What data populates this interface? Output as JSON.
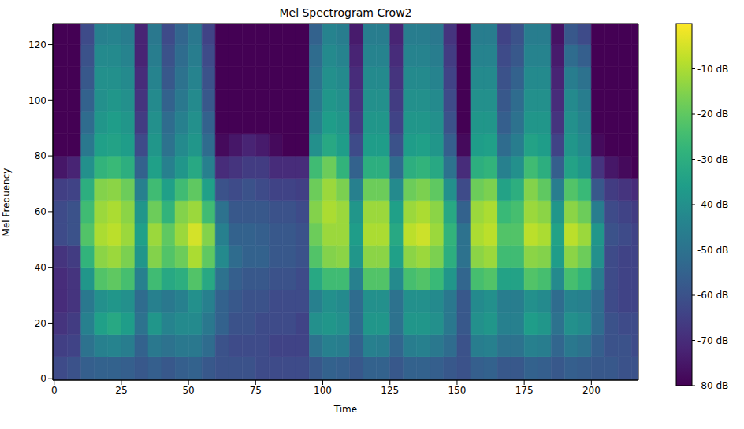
{
  "chart_data": {
    "type": "heatmap",
    "title": "Mel Spectrogram Crow2",
    "x_label": "Time",
    "y_label": "Mel Frequency",
    "xlim": [
      -0.5,
      217.5
    ],
    "ylim": [
      -0.5,
      127.5
    ],
    "xticks": [
      0,
      25,
      50,
      75,
      100,
      125,
      150,
      175,
      200
    ],
    "yticks": [
      0,
      20,
      40,
      60,
      80,
      100,
      120
    ],
    "x_bins": [
      -0.5,
      5,
      10,
      15,
      20,
      25,
      30,
      35,
      40,
      45,
      50,
      55,
      60,
      65,
      70,
      75,
      80,
      85,
      90,
      95,
      100,
      105,
      110,
      115,
      120,
      125,
      130,
      135,
      140,
      145,
      150,
      155,
      160,
      165,
      170,
      175,
      180,
      185,
      190,
      195,
      200,
      205,
      210,
      215,
      217.5
    ],
    "y_bins": [
      -0.5,
      8,
      16,
      24,
      32,
      40,
      48,
      56,
      64,
      72,
      80,
      88,
      96,
      104,
      112,
      120,
      127.5
    ],
    "cells": [
      [
        -62,
        -65,
        -68,
        -70,
        -70,
        -68,
        -62,
        -62,
        -65,
        -75,
        -80,
        -80,
        -80,
        -80,
        -80,
        -80
      ],
      [
        -60,
        -64,
        -66,
        -68,
        -68,
        -66,
        -60,
        -60,
        -64,
        -72,
        -80,
        -80,
        -80,
        -80,
        -80,
        -80
      ],
      [
        -56,
        -50,
        -45,
        -48,
        -38,
        -28,
        -22,
        -25,
        -30,
        -40,
        -48,
        -52,
        -55,
        -58,
        -60,
        -62
      ],
      [
        -55,
        -45,
        -35,
        -40,
        -22,
        -14,
        -10,
        -12,
        -15,
        -28,
        -35,
        -38,
        -40,
        -40,
        -42,
        -45
      ],
      [
        -55,
        -44,
        -32,
        -38,
        -20,
        -12,
        -8,
        -10,
        -14,
        -26,
        -34,
        -36,
        -38,
        -40,
        -42,
        -44
      ],
      [
        -56,
        -46,
        -36,
        -40,
        -24,
        -16,
        -12,
        -14,
        -18,
        -30,
        -36,
        -38,
        -40,
        -42,
        -44,
        -46
      ],
      [
        -58,
        -55,
        -50,
        -52,
        -45,
        -38,
        -35,
        -38,
        -45,
        -55,
        -62,
        -66,
        -68,
        -70,
        -72,
        -72
      ],
      [
        -56,
        -48,
        -38,
        -45,
        -25,
        -15,
        -12,
        -18,
        -25,
        -35,
        -38,
        -40,
        -42,
        -44,
        -46,
        -48
      ],
      [
        -58,
        -50,
        -44,
        -48,
        -32,
        -22,
        -20,
        -28,
        -35,
        -45,
        -50,
        -52,
        -55,
        -58,
        -60,
        -62
      ],
      [
        -56,
        -48,
        -42,
        -45,
        -30,
        -18,
        -12,
        -15,
        -25,
        -38,
        -42,
        -45,
        -48,
        -50,
        -52,
        -54
      ],
      [
        -55,
        -48,
        -42,
        -40,
        -22,
        -10,
        -5,
        -12,
        -20,
        -32,
        -38,
        -40,
        -42,
        -44,
        -46,
        -48
      ],
      [
        -58,
        -52,
        -48,
        -45,
        -32,
        -20,
        -15,
        -25,
        -35,
        -45,
        -52,
        -55,
        -58,
        -60,
        -62,
        -64
      ],
      [
        -60,
        -60,
        -55,
        -55,
        -50,
        -42,
        -45,
        -50,
        -60,
        -70,
        -78,
        -80,
        -80,
        -80,
        -80,
        -80
      ],
      [
        -60,
        -62,
        -60,
        -58,
        -56,
        -52,
        -55,
        -58,
        -62,
        -68,
        -75,
        -80,
        -80,
        -80,
        -80,
        -80
      ],
      [
        -60,
        -62,
        -60,
        -60,
        -58,
        -55,
        -55,
        -58,
        -60,
        -66,
        -72,
        -80,
        -80,
        -80,
        -80,
        -80
      ],
      [
        -62,
        -62,
        -62,
        -60,
        -58,
        -55,
        -56,
        -58,
        -62,
        -66,
        -74,
        -80,
        -80,
        -80,
        -80,
        -80
      ],
      [
        -62,
        -64,
        -62,
        -62,
        -60,
        -58,
        -58,
        -60,
        -64,
        -70,
        -78,
        -80,
        -80,
        -80,
        -80,
        -80
      ],
      [
        -62,
        -64,
        -62,
        -62,
        -60,
        -58,
        -58,
        -60,
        -64,
        -70,
        -80,
        -80,
        -80,
        -80,
        -80,
        -80
      ],
      [
        -62,
        -64,
        -64,
        -62,
        -62,
        -60,
        -60,
        -62,
        -65,
        -70,
        -80,
        -80,
        -80,
        -80,
        -80,
        -80
      ],
      [
        -58,
        -50,
        -40,
        -45,
        -32,
        -22,
        -18,
        -15,
        -18,
        -25,
        -40,
        -45,
        -48,
        -50,
        -52,
        -55
      ],
      [
        -55,
        -45,
        -38,
        -40,
        -25,
        -15,
        -12,
        -10,
        -12,
        -18,
        -32,
        -36,
        -38,
        -40,
        -42,
        -44
      ],
      [
        -56,
        -46,
        -40,
        -42,
        -25,
        -14,
        -12,
        -12,
        -16,
        -28,
        -36,
        -38,
        -40,
        -42,
        -44,
        -46
      ],
      [
        -58,
        -55,
        -52,
        -52,
        -45,
        -38,
        -36,
        -38,
        -45,
        -55,
        -62,
        -66,
        -68,
        -70,
        -72,
        -74
      ],
      [
        -55,
        -45,
        -38,
        -40,
        -22,
        -14,
        -10,
        -12,
        -18,
        -30,
        -36,
        -38,
        -40,
        -42,
        -44,
        -46
      ],
      [
        -55,
        -46,
        -38,
        -40,
        -22,
        -14,
        -10,
        -12,
        -18,
        -30,
        -36,
        -38,
        -40,
        -42,
        -44,
        -46
      ],
      [
        -58,
        -54,
        -50,
        -50,
        -42,
        -35,
        -32,
        -35,
        -42,
        -52,
        -60,
        -64,
        -66,
        -68,
        -70,
        -72
      ],
      [
        -55,
        -46,
        -38,
        -40,
        -24,
        -14,
        -8,
        -12,
        -18,
        -30,
        -36,
        -38,
        -40,
        -42,
        -44,
        -46
      ],
      [
        -55,
        -45,
        -38,
        -40,
        -22,
        -12,
        -6,
        -10,
        -16,
        -28,
        -35,
        -38,
        -40,
        -42,
        -44,
        -46
      ],
      [
        -56,
        -48,
        -40,
        -42,
        -26,
        -16,
        -12,
        -14,
        -20,
        -32,
        -38,
        -40,
        -42,
        -44,
        -46,
        -48
      ],
      [
        -58,
        -52,
        -48,
        -48,
        -38,
        -30,
        -28,
        -32,
        -40,
        -50,
        -56,
        -60,
        -62,
        -64,
        -66,
        -68
      ],
      [
        -60,
        -60,
        -58,
        -58,
        -54,
        -50,
        -50,
        -55,
        -62,
        -70,
        -78,
        -80,
        -80,
        -80,
        -80,
        -80
      ],
      [
        -56,
        -46,
        -40,
        -42,
        -24,
        -14,
        -10,
        -12,
        -18,
        -30,
        -36,
        -38,
        -40,
        -42,
        -44,
        -46
      ],
      [
        -55,
        -45,
        -38,
        -40,
        -22,
        -12,
        -8,
        -10,
        -16,
        -28,
        -35,
        -38,
        -40,
        -42,
        -44,
        -46
      ],
      [
        -58,
        -50,
        -45,
        -46,
        -34,
        -25,
        -22,
        -26,
        -34,
        -45,
        -52,
        -56,
        -58,
        -60,
        -62,
        -64
      ],
      [
        -58,
        -50,
        -45,
        -46,
        -34,
        -25,
        -22,
        -24,
        -30,
        -40,
        -46,
        -50,
        -52,
        -55,
        -58,
        -60
      ],
      [
        -55,
        -45,
        -36,
        -40,
        -22,
        -14,
        -8,
        -12,
        -15,
        -25,
        -34,
        -38,
        -40,
        -42,
        -44,
        -46
      ],
      [
        -56,
        -46,
        -38,
        -42,
        -24,
        -15,
        -10,
        -14,
        -20,
        -30,
        -36,
        -38,
        -40,
        -42,
        -44,
        -46
      ],
      [
        -58,
        -54,
        -50,
        -52,
        -42,
        -36,
        -34,
        -38,
        -46,
        -56,
        -64,
        -68,
        -70,
        -72,
        -74,
        -76
      ],
      [
        -56,
        -48,
        -40,
        -44,
        -24,
        -14,
        -8,
        -14,
        -22,
        -34,
        -38,
        -40,
        -42,
        -46,
        -52,
        -58
      ],
      [
        -57,
        -50,
        -42,
        -45,
        -28,
        -18,
        -12,
        -18,
        -26,
        -38,
        -42,
        -44,
        -46,
        -50,
        -56,
        -62
      ],
      [
        -58,
        -56,
        -52,
        -52,
        -46,
        -40,
        -38,
        -46,
        -58,
        -68,
        -78,
        -80,
        -80,
        -80,
        -80,
        -80
      ],
      [
        -58,
        -60,
        -60,
        -62,
        -62,
        -62,
        -60,
        -62,
        -66,
        -75,
        -80,
        -80,
        -80,
        -80,
        -80,
        -80
      ],
      [
        -60,
        -60,
        -62,
        -64,
        -64,
        -64,
        -62,
        -64,
        -68,
        -78,
        -80,
        -80,
        -80,
        -80,
        -80,
        -80
      ],
      [
        -60,
        -62,
        -62,
        -64,
        -64,
        -64,
        -64,
        -66,
        -70,
        -80,
        -80,
        -80,
        -80,
        -80,
        -80,
        -80
      ]
    ],
    "colorbar": {
      "range": [
        -80,
        0
      ],
      "ticks": [
        {
          "value": -10,
          "label": "-10 dB"
        },
        {
          "value": -20,
          "label": "-20 dB"
        },
        {
          "value": -30,
          "label": "-30 dB"
        },
        {
          "value": -40,
          "label": "-40 dB"
        },
        {
          "value": -50,
          "label": "-50 dB"
        },
        {
          "value": -60,
          "label": "-60 dB"
        },
        {
          "value": -70,
          "label": "-70 dB"
        },
        {
          "value": -80,
          "label": "-80 dB"
        }
      ]
    }
  }
}
